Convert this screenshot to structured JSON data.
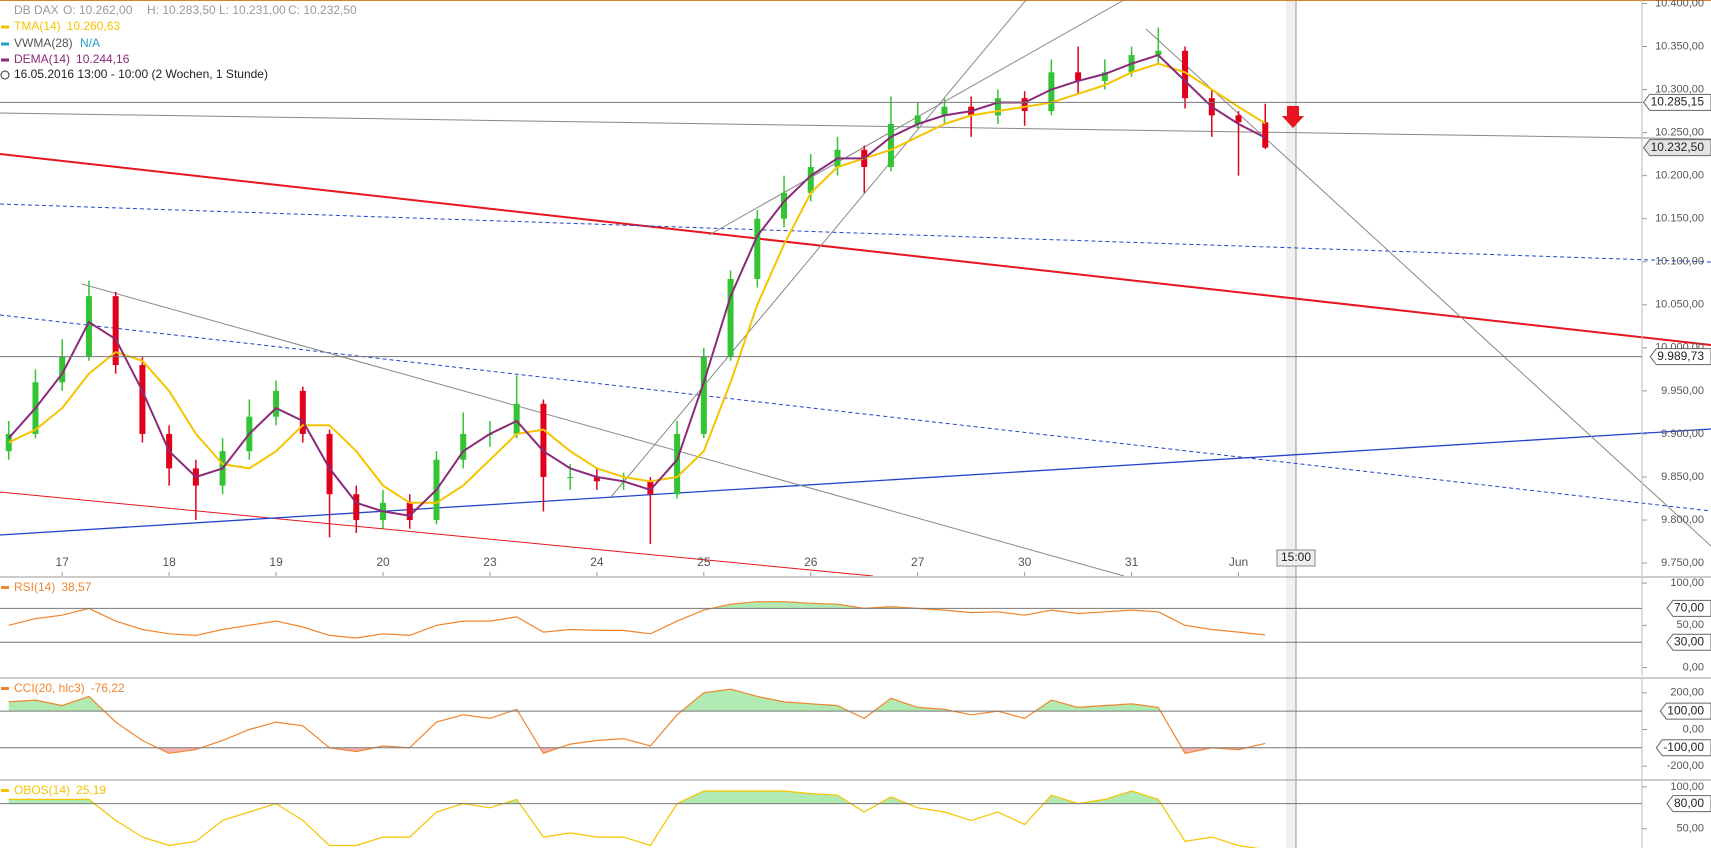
{
  "header": {
    "symbol": "DB DAX",
    "open": "O: 10.262,00",
    "high": "H: 10.283,50",
    "low": "L: 10.231,00",
    "close": "C: 10.232,50",
    "vwma": {
      "name": "VWMA(28)",
      "value": "N/A",
      "color": "#1f9fc9"
    },
    "range": "16.05.2016 13:00 - 10:00 (2 Wochen, 1 Stunde)",
    "crosshair_label": "15:00"
  },
  "chart_data": [
    {
      "type": "candlestick",
      "categories": [
        null,
        null,
        "17",
        null,
        null,
        null,
        "18",
        null,
        null,
        null,
        "19",
        null,
        null,
        null,
        "20",
        null,
        null,
        null,
        "23",
        null,
        null,
        null,
        "24",
        null,
        null,
        null,
        "25",
        null,
        null,
        null,
        "26",
        null,
        null,
        null,
        "27",
        null,
        null,
        null,
        "30",
        null,
        null,
        null,
        "31",
        null,
        null,
        null,
        "Jun",
        null
      ],
      "open": [
        9880,
        9900,
        9960,
        9990,
        10060,
        9980,
        9900,
        9860,
        9840,
        9880,
        9920,
        9950,
        9900,
        9830,
        9800,
        9820,
        9800,
        9870,
        9900,
        9900,
        9935,
        9850,
        9850,
        9845,
        9845,
        9830,
        9900,
        9990,
        10080,
        10150,
        10180,
        10210,
        10230,
        10210,
        10260,
        10270,
        10280,
        10270,
        10290,
        10275,
        10320,
        10310,
        10320,
        10340,
        10345,
        10290,
        10270,
        10262
      ],
      "high": [
        9915,
        9975,
        10010,
        10078,
        10065,
        9990,
        9910,
        9870,
        9895,
        9940,
        9962,
        9955,
        9905,
        9840,
        9835,
        9830,
        9880,
        9925,
        9915,
        9968,
        9940,
        9865,
        9860,
        9855,
        9850,
        9915,
        10000,
        10090,
        10160,
        10200,
        10225,
        10245,
        10235,
        10292,
        10285,
        10290,
        10292,
        10300,
        10298,
        10335,
        10350,
        10335,
        10350,
        10372,
        10350,
        10300,
        10275,
        10283.5
      ],
      "low": [
        9870,
        9895,
        9950,
        9985,
        9970,
        9890,
        9840,
        9800,
        9830,
        9870,
        9910,
        9890,
        9780,
        9785,
        9790,
        9790,
        9795,
        9860,
        9885,
        9895,
        9810,
        9835,
        9835,
        9835,
        9772,
        9825,
        9895,
        9985,
        10070,
        10140,
        10170,
        10200,
        10180,
        10205,
        10255,
        10260,
        10245,
        10260,
        10258,
        10270,
        10295,
        10300,
        10315,
        10330,
        10278,
        10245,
        10200,
        10231
      ],
      "close": [
        9900,
        9960,
        9990,
        10060,
        9980,
        9900,
        9860,
        9840,
        9880,
        9920,
        9950,
        9900,
        9830,
        9800,
        9820,
        9800,
        9870,
        9900,
        9900,
        9935,
        9850,
        9850,
        9845,
        9845,
        9830,
        9900,
        9990,
        10080,
        10150,
        10180,
        10210,
        10230,
        10210,
        10260,
        10270,
        10280,
        10270,
        10290,
        10275,
        10320,
        10310,
        10320,
        10340,
        10345,
        10290,
        10270,
        10262,
        10232.5
      ],
      "up_color": "#33c433",
      "down_color": "#e0001b",
      "series": [
        {
          "name": "TMA(14)",
          "color": "#f5c400",
          "value_label": "10.260,63",
          "values": [
            9890,
            9905,
            9930,
            9970,
            9995,
            9985,
            9950,
            9900,
            9865,
            9860,
            9880,
            9910,
            9910,
            9880,
            9840,
            9820,
            9820,
            9840,
            9870,
            9900,
            9905,
            9880,
            9860,
            9850,
            9845,
            9850,
            9880,
            9960,
            10050,
            10120,
            10180,
            10210,
            10220,
            10230,
            10245,
            10260,
            10270,
            10275,
            10280,
            10285,
            10295,
            10305,
            10320,
            10330,
            10320,
            10300,
            10280,
            10260.63
          ]
        },
        {
          "name": "DEMA(14)",
          "color": "#8b2a7a",
          "value_label": "10.244,16",
          "values": [
            9895,
            9930,
            9970,
            10030,
            10010,
            9950,
            9880,
            9850,
            9860,
            9900,
            9930,
            9915,
            9860,
            9820,
            9810,
            9805,
            9835,
            9880,
            9900,
            9915,
            9880,
            9860,
            9850,
            9845,
            9835,
            9870,
            9960,
            10060,
            10130,
            10170,
            10200,
            10220,
            10220,
            10245,
            10260,
            10270,
            10275,
            10285,
            10285,
            10300,
            10310,
            10318,
            10330,
            10340,
            10310,
            10280,
            10260,
            10244.16
          ]
        }
      ],
      "ylim": [
        9735,
        10404
      ],
      "yticks": [
        {
          "value": 9750,
          "label": "9.750,00"
        },
        {
          "value": 9800,
          "label": "9.800,00"
        },
        {
          "value": 9850,
          "label": "9.850,00"
        },
        {
          "value": 9900,
          "label": "9.900,00"
        },
        {
          "value": 9950,
          "label": "9.950,00"
        },
        {
          "value": 10000,
          "label": "10.000,00"
        },
        {
          "value": 10050,
          "label": "10.050,00"
        },
        {
          "value": 10100,
          "label": "10.100,00"
        },
        {
          "value": 10150,
          "label": "10.150,00"
        },
        {
          "value": 10200,
          "label": "10.200,00"
        },
        {
          "value": 10250,
          "label": "10.250,00"
        },
        {
          "value": 10300,
          "label": "10.300,00"
        },
        {
          "value": 10350,
          "label": "10.350,00"
        },
        {
          "value": 10400,
          "label": "10.400,00"
        }
      ],
      "hlines": [
        {
          "value": 10285.15,
          "label": "10.285,15"
        },
        {
          "value": 9989.73,
          "label": "9.989,73"
        }
      ],
      "last_price": {
        "value": 10232.5,
        "label": "10.232,50"
      }
    },
    {
      "type": "line",
      "title": "RSI(14)",
      "value_label": "38,57",
      "color": "#f0852d",
      "values": [
        50,
        58,
        62,
        70,
        55,
        45,
        40,
        38,
        45,
        50,
        55,
        48,
        38,
        35,
        40,
        38,
        50,
        55,
        55,
        60,
        42,
        45,
        44,
        44,
        40,
        55,
        68,
        75,
        78,
        78,
        76,
        75,
        70,
        72,
        70,
        68,
        65,
        66,
        62,
        68,
        64,
        66,
        68,
        66,
        50,
        45,
        42,
        38.57
      ],
      "ylim": [
        -10,
        106
      ],
      "yticks": [
        {
          "value": 0,
          "label": "0,00"
        },
        {
          "value": 50,
          "label": "50,00"
        },
        {
          "value": 100,
          "label": "100,00"
        }
      ],
      "levels": [
        {
          "value": 70,
          "label": "70,00"
        },
        {
          "value": 30,
          "label": "30,00"
        }
      ]
    },
    {
      "type": "line",
      "title": "CCI(20, hlc3)",
      "value_label": "-76,22",
      "color": "#f0852d",
      "values": [
        150,
        160,
        130,
        180,
        40,
        -60,
        -130,
        -110,
        -60,
        0,
        40,
        20,
        -100,
        -120,
        -90,
        -100,
        40,
        80,
        60,
        110,
        -130,
        -80,
        -60,
        -50,
        -90,
        80,
        200,
        220,
        180,
        150,
        140,
        130,
        60,
        170,
        120,
        110,
        80,
        100,
        60,
        160,
        120,
        130,
        140,
        120,
        -130,
        -100,
        -110,
        -76.22
      ],
      "ylim": [
        -270,
        275
      ],
      "yticks": [
        {
          "value": -200,
          "label": "-200,00"
        },
        {
          "value": 0,
          "label": "0,00"
        },
        {
          "value": 200,
          "label": "200,00"
        }
      ],
      "levels": [
        {
          "value": 100,
          "label": "100,00"
        },
        {
          "value": -100,
          "label": "-100,00"
        }
      ]
    },
    {
      "type": "line",
      "title": "OBOS(14)",
      "value_label": "25,19",
      "color": "#f5c400",
      "values": [
        85,
        85,
        85,
        85,
        60,
        40,
        30,
        35,
        60,
        70,
        80,
        60,
        30,
        30,
        40,
        40,
        70,
        80,
        75,
        85,
        40,
        45,
        40,
        40,
        30,
        80,
        95,
        95,
        95,
        95,
        92,
        90,
        70,
        88,
        75,
        70,
        60,
        70,
        55,
        90,
        80,
        85,
        95,
        85,
        35,
        40,
        30,
        25.19
      ],
      "ylim": [
        27,
        107
      ],
      "yticks": [
        {
          "value": 50,
          "label": "50,00"
        },
        {
          "value": 100,
          "label": "100,00"
        }
      ],
      "levels": [
        {
          "value": 80,
          "label": "80,00"
        }
      ]
    }
  ]
}
